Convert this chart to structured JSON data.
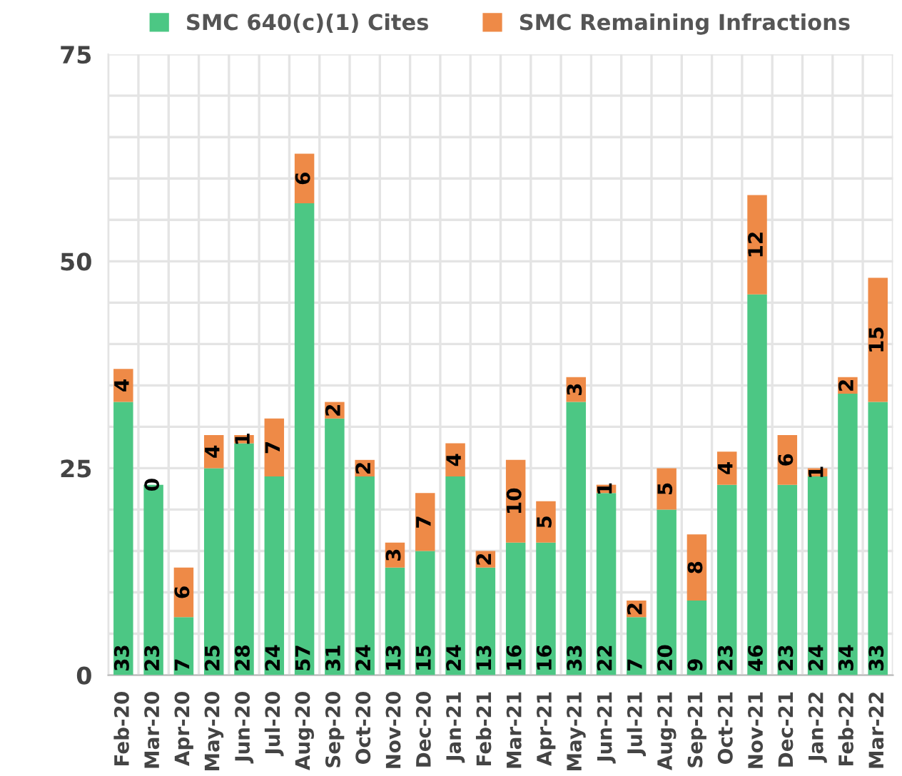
{
  "chart_data": {
    "type": "bar",
    "stacked": true,
    "categories": [
      "Feb-20",
      "Mar-20",
      "Apr-20",
      "May-20",
      "Jun-20",
      "Jul-20",
      "Aug-20",
      "Sep-20",
      "Oct-20",
      "Nov-20",
      "Dec-20",
      "Jan-21",
      "Feb-21",
      "Mar-21",
      "Apr-21",
      "May-21",
      "Jun-21",
      "Jul-21",
      "Aug-21",
      "Sep-21",
      "Oct-21",
      "Nov-21",
      "Dec-21",
      "Jan-22",
      "Feb-22",
      "Mar-22"
    ],
    "series": [
      {
        "name": "SMC 640(c)(1) Cites",
        "color": "#4cc784",
        "values": [
          33,
          23,
          7,
          25,
          28,
          24,
          57,
          31,
          24,
          13,
          15,
          24,
          13,
          16,
          16,
          33,
          22,
          7,
          20,
          9,
          23,
          46,
          23,
          24,
          34,
          33
        ]
      },
      {
        "name": "SMC Remaining Infractions",
        "color": "#ee8a47",
        "values": [
          4,
          0,
          6,
          4,
          1,
          7,
          6,
          2,
          2,
          3,
          7,
          4,
          2,
          10,
          5,
          3,
          1,
          2,
          5,
          8,
          4,
          12,
          6,
          1,
          2,
          15
        ]
      }
    ],
    "ylim": [
      0,
      75
    ],
    "yticks": [
      0,
      {
        "value": 5,
        "label": null
      },
      {
        "value": 10,
        "label": null
      },
      {
        "value": 15,
        "label": null
      },
      {
        "value": 20,
        "label": null
      },
      25,
      {
        "value": 30,
        "label": null
      },
      {
        "value": 35,
        "label": null
      },
      {
        "value": 40,
        "label": null
      },
      {
        "value": 45,
        "label": null
      },
      50,
      {
        "value": 55,
        "label": null
      },
      {
        "value": 60,
        "label": null
      },
      {
        "value": 65,
        "label": null
      },
      {
        "value": 70,
        "label": null
      },
      75
    ],
    "grid": true,
    "legend": "top",
    "data_labels": true
  }
}
